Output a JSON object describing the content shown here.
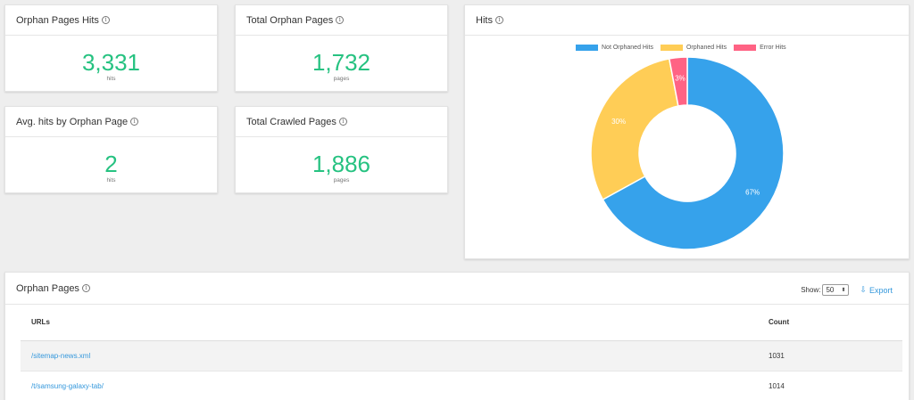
{
  "stats": {
    "orphan_hits": {
      "title": "Orphan Pages Hits",
      "value": "3,331",
      "unit": "hits"
    },
    "total_orphan": {
      "title": "Total Orphan Pages",
      "value": "1,732",
      "unit": "pages"
    },
    "avg_hits": {
      "title": "Avg. hits by Orphan Page",
      "value": "2",
      "unit": "hits"
    },
    "total_crawled": {
      "title": "Total Crawled Pages",
      "value": "1,886",
      "unit": "pages"
    }
  },
  "hits_chart": {
    "title": "Hits",
    "legend": [
      "Not Orphaned Hits",
      "Orphaned Hits",
      "Error Hits"
    ],
    "colors": [
      "#36a2eb",
      "#ffcd56",
      "#ff6384"
    ],
    "labels": [
      "67%",
      "30%",
      "3%"
    ]
  },
  "chart_data": {
    "type": "pie",
    "title": "Hits",
    "categories": [
      "Not Orphaned Hits",
      "Orphaned Hits",
      "Error Hits"
    ],
    "values": [
      67,
      30,
      3
    ],
    "legend": "top"
  },
  "orphan_table": {
    "title": "Orphan Pages",
    "show_label": "Show:",
    "show_value": "50",
    "export_label": "Export",
    "columns": [
      "URLs",
      "Count"
    ],
    "rows": [
      {
        "url": "/sitemap-news.xml",
        "count": "1031"
      },
      {
        "url": "/t/samsung-galaxy-tab/",
        "count": "1014"
      }
    ]
  }
}
